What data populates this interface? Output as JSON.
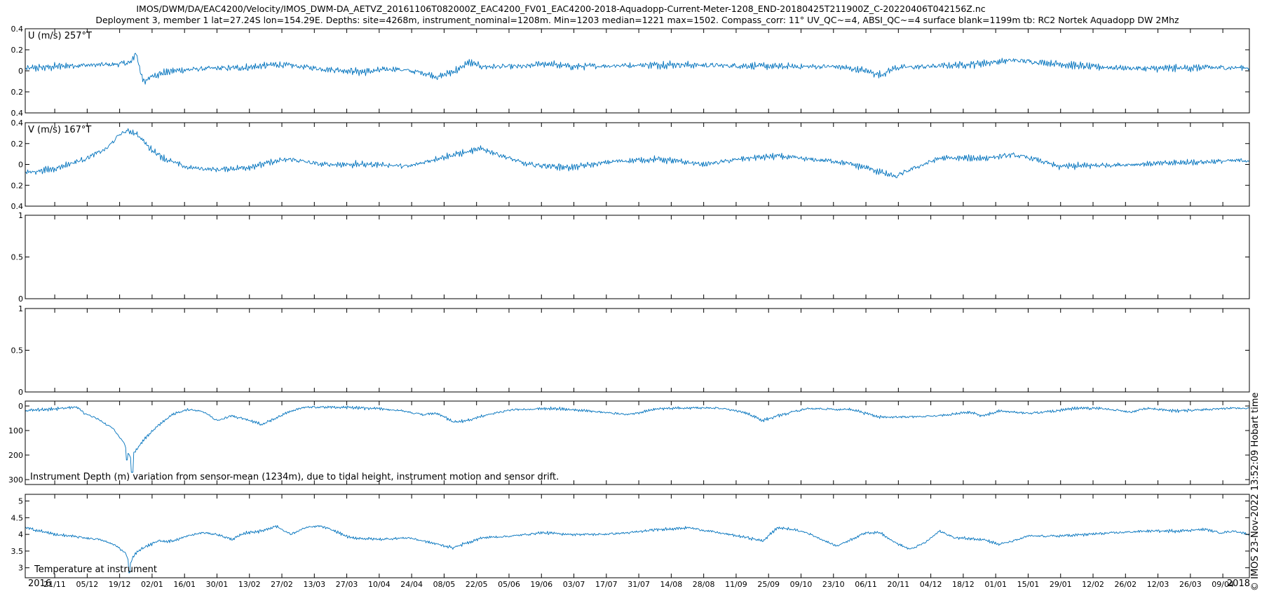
{
  "header": {
    "title_line1": "IMOS/DWM/DA/EAC4200/Velocity/IMOS_DWM-DA_AETVZ_20161106T082000Z_EAC4200_FV01_EAC4200-2018-Aquadopp-Current-Meter-1208_END-20180425T211900Z_C-20220406T042156Z.nc",
    "title_line2": "Deployment 3, member 1 lat=27.24S lon=154.29E. Depths: site=4268m, instrument_nominal=1208m. Min=1203 median=1221 max=1502. Compass_corr: 11° UV_QC~=4, ABSI_QC~=4 surface blank=1199m tb: RC2 Nortek Aquadopp DW 2Mhz"
  },
  "side_label": "© IMOS 23-Nov-2022 13:52:09 Hobart time",
  "colors": {
    "series": "#0072bd",
    "axes": "#000000",
    "background": "#ffffff"
  },
  "chart_data": [
    {
      "type": "line",
      "label": "U (m/s) 257°T",
      "ylim": [
        -0.4,
        0.4
      ],
      "yticks": [
        "0.4",
        "0.2",
        "0",
        "0.2",
        "0.4"
      ],
      "series": [
        {
          "noise": 0.045,
          "trend": [
            [
              0,
              0.02
            ],
            [
              3,
              0.05
            ],
            [
              6,
              0.06
            ],
            [
              7.2,
              0.08
            ],
            [
              7.5,
              0.18
            ],
            [
              7.8,
              0.0
            ],
            [
              8.1,
              -0.12
            ],
            [
              8.5,
              -0.05
            ],
            [
              10,
              0.0
            ],
            [
              12,
              0.02
            ],
            [
              15,
              0.03
            ],
            [
              17,
              0.06
            ],
            [
              18,
              0.05
            ],
            [
              20,
              0.02
            ],
            [
              23,
              -0.01
            ],
            [
              25,
              0.02
            ],
            [
              27,
              -0.02
            ],
            [
              28,
              -0.06
            ],
            [
              29.5,
              0.02
            ],
            [
              30,
              0.08
            ],
            [
              31,
              0.04
            ],
            [
              34,
              0.04
            ],
            [
              35,
              0.07
            ],
            [
              37,
              0.04
            ],
            [
              40,
              0.05
            ],
            [
              44,
              0.06
            ],
            [
              47,
              0.05
            ],
            [
              52,
              0.04
            ],
            [
              55,
              0.04
            ],
            [
              57,
              0.0
            ],
            [
              58,
              -0.04
            ],
            [
              59,
              0.03
            ],
            [
              61,
              0.04
            ],
            [
              64,
              0.06
            ],
            [
              67,
              0.1
            ],
            [
              69,
              0.08
            ],
            [
              72,
              0.04
            ],
            [
              76,
              0.02
            ],
            [
              80,
              0.03
            ],
            [
              83,
              0.03
            ]
          ]
        }
      ]
    },
    {
      "type": "line",
      "label": "V (m/s) 167°T",
      "ylim": [
        -0.4,
        0.4
      ],
      "yticks": [
        "0.4",
        "0.2",
        "0",
        "0.2",
        "0.4"
      ],
      "series": [
        {
          "noise": 0.04,
          "trend": [
            [
              0,
              -0.08
            ],
            [
              2,
              -0.04
            ],
            [
              4,
              0.05
            ],
            [
              5.5,
              0.15
            ],
            [
              6.5,
              0.3
            ],
            [
              7,
              0.32
            ],
            [
              7.5,
              0.3
            ],
            [
              8.5,
              0.15
            ],
            [
              9.5,
              0.05
            ],
            [
              11,
              -0.03
            ],
            [
              13,
              -0.05
            ],
            [
              15,
              -0.03
            ],
            [
              17,
              0.03
            ],
            [
              18,
              0.05
            ],
            [
              20,
              0.0
            ],
            [
              24,
              0.0
            ],
            [
              26,
              -0.02
            ],
            [
              28,
              0.06
            ],
            [
              31,
              0.15
            ],
            [
              32,
              0.1
            ],
            [
              34,
              0.0
            ],
            [
              37,
              -0.03
            ],
            [
              40,
              0.03
            ],
            [
              43,
              0.05
            ],
            [
              46,
              0.0
            ],
            [
              49,
              0.06
            ],
            [
              51,
              0.08
            ],
            [
              53,
              0.05
            ],
            [
              55,
              0.03
            ],
            [
              57,
              -0.03
            ],
            [
              59,
              -0.12
            ],
            [
              60,
              -0.05
            ],
            [
              62,
              0.06
            ],
            [
              65,
              0.06
            ],
            [
              67,
              0.09
            ],
            [
              68.5,
              0.05
            ],
            [
              70,
              -0.02
            ],
            [
              75,
              0.0
            ],
            [
              79,
              0.02
            ],
            [
              83,
              0.04
            ]
          ]
        }
      ]
    },
    {
      "type": "line",
      "ylim": [
        0,
        1
      ],
      "yticks": [
        "1",
        "0.5",
        "0"
      ],
      "series": []
    },
    {
      "type": "line",
      "ylim": [
        0,
        1
      ],
      "yticks": [
        "1",
        "0.5",
        "0"
      ],
      "series": []
    },
    {
      "type": "line",
      "label": "Instrument Depth (m) variation from sensor-mean (1234m), due to tidal height, instrument motion and sensor drift.",
      "ylim": [
        -20,
        320
      ],
      "yreversed": true,
      "yticks": [
        "0",
        "100",
        "200",
        "300"
      ],
      "series": [
        {
          "noise": 8,
          "floor": 0,
          "trend": [
            [
              0,
              18
            ],
            [
              2,
              12
            ],
            [
              3.5,
              5
            ],
            [
              4,
              30
            ],
            [
              5,
              55
            ],
            [
              6,
              95
            ],
            [
              6.7,
              150
            ],
            [
              7.1,
              210
            ],
            [
              7.4,
              190
            ],
            [
              8,
              140
            ],
            [
              9,
              80
            ],
            [
              10,
              35
            ],
            [
              11,
              15
            ],
            [
              12,
              20
            ],
            [
              13,
              60
            ],
            [
              14,
              40
            ],
            [
              15,
              55
            ],
            [
              16,
              75
            ],
            [
              17,
              50
            ],
            [
              18,
              20
            ],
            [
              19,
              5
            ],
            [
              22,
              5
            ],
            [
              25,
              15
            ],
            [
              27,
              35
            ],
            [
              28,
              30
            ],
            [
              29,
              65
            ],
            [
              30,
              60
            ],
            [
              31,
              40
            ],
            [
              33,
              15
            ],
            [
              36,
              10
            ],
            [
              39,
              25
            ],
            [
              41,
              35
            ],
            [
              43,
              10
            ],
            [
              47,
              8
            ],
            [
              49,
              30
            ],
            [
              50,
              60
            ],
            [
              51,
              40
            ],
            [
              53,
              10
            ],
            [
              56,
              15
            ],
            [
              58,
              45
            ],
            [
              59,
              45
            ],
            [
              60,
              45
            ],
            [
              62,
              40
            ],
            [
              64,
              25
            ],
            [
              65,
              40
            ],
            [
              66,
              20
            ],
            [
              68,
              30
            ],
            [
              70,
              20
            ],
            [
              71,
              10
            ],
            [
              73,
              10
            ],
            [
              75,
              25
            ],
            [
              76,
              10
            ],
            [
              78,
              20
            ],
            [
              80,
              15
            ],
            [
              82,
              8
            ],
            [
              83,
              10
            ]
          ]
        }
      ],
      "spikes": [
        [
          7.25,
          270
        ],
        [
          6.9,
          220
        ]
      ]
    },
    {
      "type": "line",
      "label": "Temperature at instrument",
      "ylim": [
        2.7,
        5.2
      ],
      "yticks": [
        "5",
        "4.5",
        "4",
        "3.5",
        "3"
      ],
      "series": [
        {
          "noise": 0.06,
          "trend": [
            [
              0,
              4.2
            ],
            [
              2,
              4.0
            ],
            [
              4,
              3.9
            ],
            [
              5,
              3.85
            ],
            [
              6,
              3.7
            ],
            [
              6.8,
              3.45
            ],
            [
              7.1,
              3.1
            ],
            [
              7.4,
              3.4
            ],
            [
              8,
              3.6
            ],
            [
              9,
              3.8
            ],
            [
              10,
              3.8
            ],
            [
              11,
              3.95
            ],
            [
              12,
              4.05
            ],
            [
              13,
              4.0
            ],
            [
              14,
              3.85
            ],
            [
              15,
              4.05
            ],
            [
              16,
              4.1
            ],
            [
              17,
              4.25
            ],
            [
              18,
              4.0
            ],
            [
              19,
              4.2
            ],
            [
              20,
              4.25
            ],
            [
              21,
              4.1
            ],
            [
              22,
              3.9
            ],
            [
              24,
              3.85
            ],
            [
              26,
              3.9
            ],
            [
              27,
              3.8
            ],
            [
              28,
              3.7
            ],
            [
              29,
              3.6
            ],
            [
              30,
              3.75
            ],
            [
              31,
              3.9
            ],
            [
              33,
              3.95
            ],
            [
              35,
              4.05
            ],
            [
              37,
              4.0
            ],
            [
              39,
              4.0
            ],
            [
              41,
              4.05
            ],
            [
              43,
              4.15
            ],
            [
              45,
              4.2
            ],
            [
              47,
              4.05
            ],
            [
              49,
              3.9
            ],
            [
              50,
              3.8
            ],
            [
              51,
              4.2
            ],
            [
              52,
              4.15
            ],
            [
              53,
              4.05
            ],
            [
              54,
              3.85
            ],
            [
              55,
              3.65
            ],
            [
              56,
              3.85
            ],
            [
              57,
              4.05
            ],
            [
              58,
              4.05
            ],
            [
              59,
              3.75
            ],
            [
              60,
              3.55
            ],
            [
              61,
              3.75
            ],
            [
              62,
              4.1
            ],
            [
              63,
              3.9
            ],
            [
              65,
              3.85
            ],
            [
              66,
              3.7
            ],
            [
              67,
              3.8
            ],
            [
              68,
              3.95
            ],
            [
              70,
              3.95
            ],
            [
              72,
              4.0
            ],
            [
              74,
              4.05
            ],
            [
              76,
              4.1
            ],
            [
              78,
              4.1
            ],
            [
              80,
              4.15
            ],
            [
              81,
              4.05
            ],
            [
              82,
              4.1
            ],
            [
              83,
              4.0
            ]
          ]
        }
      ],
      "spikes": [
        [
          7.05,
          2.85
        ]
      ]
    }
  ],
  "x_axis": {
    "tick_labels": [
      "21/11",
      "05/12",
      "19/12",
      "02/01",
      "16/01",
      "30/01",
      "13/02",
      "27/02",
      "13/03",
      "27/03",
      "10/04",
      "24/04",
      "08/05",
      "22/05",
      "05/06",
      "19/06",
      "03/07",
      "17/07",
      "31/07",
      "14/08",
      "28/08",
      "11/09",
      "25/09",
      "09/10",
      "23/10",
      "06/11",
      "20/11",
      "04/12",
      "18/12",
      "01/01",
      "15/01",
      "29/01",
      "12/02",
      "26/02",
      "12/03",
      "26/03",
      "09/04"
    ],
    "year_start": "2016",
    "year_end": "2018"
  }
}
